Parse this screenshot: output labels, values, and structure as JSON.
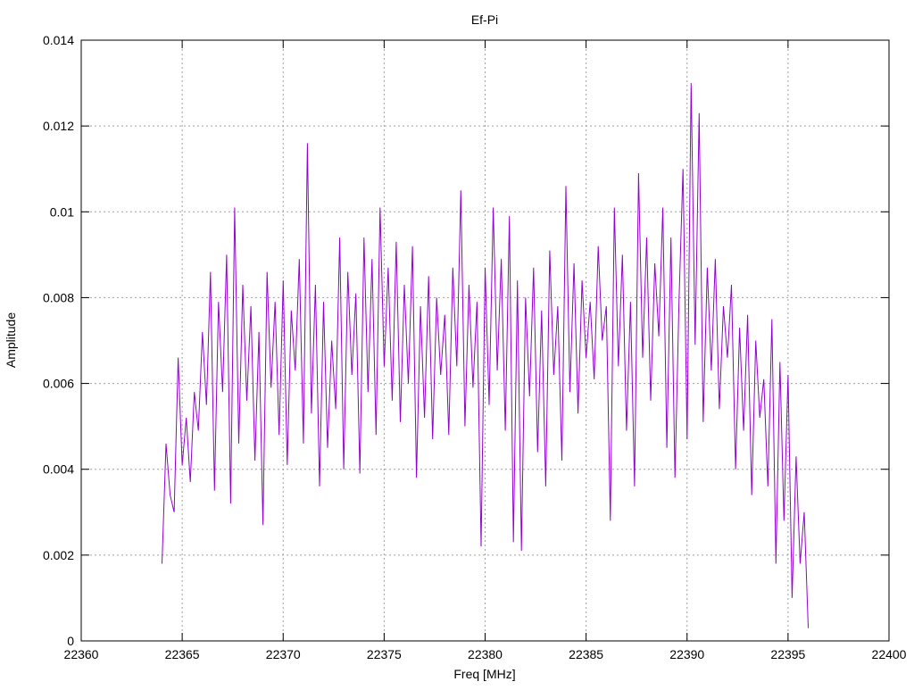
{
  "chart_data": {
    "type": "line",
    "title": "Ef-Pi",
    "xlabel": "Freq [MHz]",
    "ylabel": "Amplitude",
    "xlim": [
      22360,
      22400
    ],
    "ylim": [
      0,
      0.014
    ],
    "grid": true,
    "xticks": [
      "22360",
      "22365",
      "22370",
      "22375",
      "22380",
      "22385",
      "22390",
      "22395",
      "22400"
    ],
    "yticks": [
      "0",
      "0.002",
      "0.004",
      "0.006",
      "0.008",
      "0.01",
      "0.012",
      "0.014"
    ],
    "series": [
      {
        "name": "Ef-Pi",
        "color": "#9400d3",
        "x_start": 22364.0,
        "x_step": 0.2,
        "values": [
          0.0018,
          0.0046,
          0.0034,
          0.003,
          0.0066,
          0.0041,
          0.0052,
          0.0037,
          0.0058,
          0.0049,
          0.0072,
          0.0055,
          0.0086,
          0.0035,
          0.0079,
          0.0058,
          0.009,
          0.0032,
          0.0101,
          0.0046,
          0.0083,
          0.0056,
          0.0078,
          0.0042,
          0.0072,
          0.0027,
          0.0086,
          0.0059,
          0.0079,
          0.0048,
          0.0084,
          0.0041,
          0.0077,
          0.0063,
          0.0089,
          0.0046,
          0.0116,
          0.0053,
          0.0083,
          0.0036,
          0.0079,
          0.0045,
          0.007,
          0.0054,
          0.0094,
          0.004,
          0.0086,
          0.0062,
          0.0081,
          0.0039,
          0.0094,
          0.0058,
          0.0089,
          0.0048,
          0.0101,
          0.0064,
          0.0087,
          0.0056,
          0.0093,
          0.0051,
          0.0083,
          0.006,
          0.0092,
          0.0038,
          0.0078,
          0.0052,
          0.0085,
          0.0047,
          0.008,
          0.0062,
          0.0076,
          0.0048,
          0.0087,
          0.0064,
          0.0105,
          0.005,
          0.0083,
          0.0059,
          0.0079,
          0.0022,
          0.0087,
          0.0055,
          0.0101,
          0.0063,
          0.0089,
          0.0049,
          0.0099,
          0.0023,
          0.0084,
          0.0021,
          0.008,
          0.0057,
          0.0087,
          0.0044,
          0.0077,
          0.0036,
          0.0091,
          0.0062,
          0.0078,
          0.0042,
          0.0106,
          0.0058,
          0.0088,
          0.0053,
          0.0084,
          0.0066,
          0.0079,
          0.0061,
          0.0092,
          0.007,
          0.0078,
          0.0028,
          0.0101,
          0.0064,
          0.009,
          0.0049,
          0.0079,
          0.0036,
          0.0109,
          0.0066,
          0.0094,
          0.0056,
          0.0088,
          0.0071,
          0.0101,
          0.0045,
          0.0094,
          0.0038,
          0.0079,
          0.011,
          0.0047,
          0.013,
          0.0069,
          0.0123,
          0.0051,
          0.0087,
          0.0063,
          0.0089,
          0.0054,
          0.0078,
          0.0066,
          0.0083,
          0.004,
          0.0073,
          0.0049,
          0.0076,
          0.0034,
          0.007,
          0.0052,
          0.0061,
          0.0036,
          0.0075,
          0.0018,
          0.0065,
          0.0028,
          0.0062,
          0.001,
          0.0043,
          0.0018,
          0.003,
          0.0003
        ]
      }
    ]
  }
}
